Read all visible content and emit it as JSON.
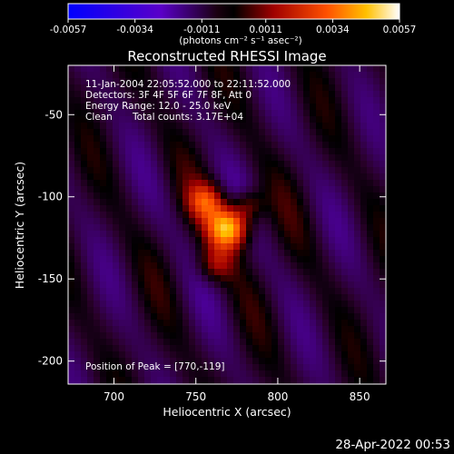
{
  "chart_data": {
    "type": "heatmap",
    "title": "Reconstructed RHESSI Image",
    "xlabel": "Heliocentric X (arcsec)",
    "ylabel": "Heliocentric Y (arcsec)",
    "xlim": [
      672,
      866
    ],
    "ylim": [
      -214,
      -20
    ],
    "x_ticks": [
      700,
      750,
      800,
      850
    ],
    "y_ticks": [
      -50,
      -100,
      -150,
      -200
    ],
    "colorbar": {
      "ticks": [
        "-0.0057",
        "-0.0034",
        "-0.0011",
        "0.0011",
        "0.0034",
        "0.0057"
      ],
      "label": "(photons cm⁻² s⁻¹ asec⁻²)",
      "range": [
        -0.0057,
        0.0057
      ]
    },
    "peak": {
      "x": 770,
      "y": -119
    },
    "annotations": {
      "time": "11-Jan-2004 22:05:52.000 to 22:11:52.000",
      "detectors": "Detectors: 3F 4F 5F 6F 7F 8F, Att 0",
      "energy": "Energy Range: 12.0 - 25.0 keV",
      "clean": "Clean",
      "counts": "Total counts: 3.17E+04",
      "peak_text": "Position of Peak = [770,-119]"
    }
  },
  "footer": {
    "date": "28-Apr-2022 00:53"
  }
}
